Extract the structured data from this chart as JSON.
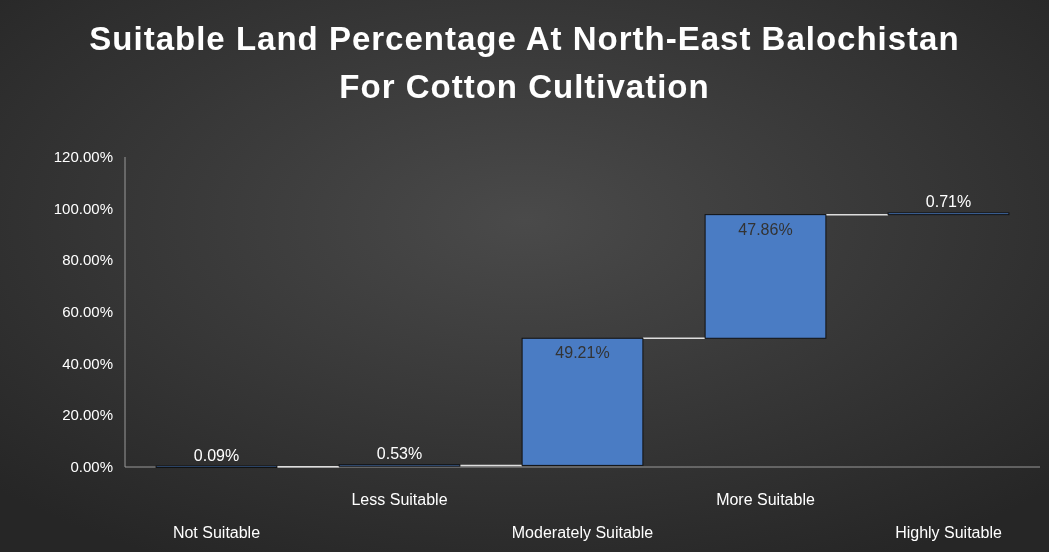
{
  "chart_data": {
    "type": "bar",
    "title": "Suitable Land Percentage At North-East Balochistan For Cotton Cultivation",
    "categories": [
      "Not Suitable",
      "Less Suitable",
      "Moderately Suitable",
      "More Suitable",
      "Highly Suitable"
    ],
    "values": [
      0.09,
      0.53,
      49.21,
      47.86,
      0.71
    ],
    "base": [
      0,
      0.09,
      0.62,
      49.83,
      97.69
    ],
    "color": "#4a7cc4",
    "value_labels": [
      "0.09%",
      "0.53%",
      "49.21%",
      "47.86%",
      "0.71%"
    ],
    "ylim": [
      0,
      120
    ],
    "yticks": [
      {
        "value": 0,
        "label": "0.00%"
      },
      {
        "value": 20,
        "label": "20.00%"
      },
      {
        "value": 40,
        "label": "40.00%"
      },
      {
        "value": 60,
        "label": "60.00%"
      },
      {
        "value": 80,
        "label": "80.00%"
      },
      {
        "value": 100,
        "label": "100.00%"
      },
      {
        "value": 120,
        "label": "120.00%"
      }
    ],
    "grid": false
  }
}
